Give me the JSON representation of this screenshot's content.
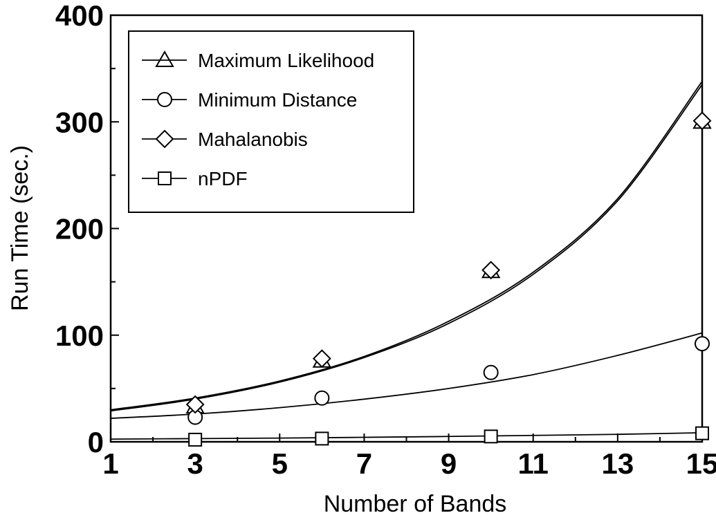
{
  "chart_data": {
    "type": "scatter",
    "xlabel": "Number of Bands",
    "ylabel": "Run Time (sec.)",
    "xlim": [
      1,
      15
    ],
    "ylim": [
      0,
      400
    ],
    "x_ticks": [
      1,
      3,
      5,
      7,
      9,
      11,
      13,
      15
    ],
    "y_ticks": [
      0,
      100,
      200,
      300,
      400
    ],
    "grid": false,
    "legend_position": "top-left",
    "series": [
      {
        "name": "Maximum Likelihood",
        "marker": "triangle",
        "x": [
          3,
          6,
          10,
          15
        ],
        "y": [
          33,
          76,
          160,
          300
        ]
      },
      {
        "name": "Minimum Distance",
        "marker": "circle",
        "x": [
          3,
          6,
          10,
          15
        ],
        "y": [
          23,
          41,
          65,
          92
        ]
      },
      {
        "name": "Mahalanobis",
        "marker": "diamond",
        "x": [
          3,
          6,
          10,
          15
        ],
        "y": [
          35,
          78,
          161,
          301
        ]
      },
      {
        "name": "nPDF",
        "marker": "square",
        "x": [
          3,
          6,
          10,
          15
        ],
        "y": [
          2,
          3,
          5,
          8
        ]
      }
    ],
    "trend_lines": [
      {
        "series": "Maximum Likelihood",
        "x": [
          1,
          3,
          5,
          7,
          9,
          11,
          13,
          15
        ],
        "y": [
          29,
          40,
          56,
          79,
          111,
          157,
          226,
          335
        ]
      },
      {
        "series": "Mahalanobis",
        "x": [
          1,
          3,
          5,
          7,
          9,
          11,
          13,
          15
        ],
        "y": [
          30,
          41,
          57,
          80,
          113,
          159,
          228,
          338
        ]
      },
      {
        "series": "Minimum Distance",
        "x": [
          1,
          3,
          5,
          7,
          9,
          11,
          13,
          15
        ],
        "y": [
          22,
          26,
          32,
          40,
          50,
          63,
          81,
          102
        ]
      },
      {
        "series": "nPDF",
        "x": [
          1,
          3,
          5,
          7,
          9,
          11,
          13,
          15
        ],
        "y": [
          2.5,
          3,
          3.5,
          4.2,
          5,
          6,
          7,
          8.5
        ]
      }
    ]
  }
}
